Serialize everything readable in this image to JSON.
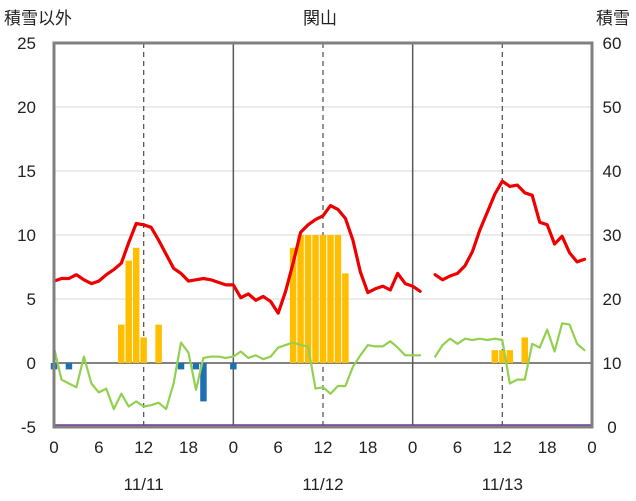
{
  "chart_data": {
    "type": "bar+line",
    "title": "関山",
    "left_axis_label": "積雪以外",
    "right_axis_label": "積雪",
    "left_ylim": [
      -5,
      25
    ],
    "left_ticks": [
      "25",
      "20",
      "15",
      "10",
      "5",
      "0",
      "-5"
    ],
    "right_ylim": [
      0,
      60
    ],
    "right_ticks": [
      "60",
      "50",
      "40",
      "30",
      "20",
      "10",
      "0"
    ],
    "x_range_hours": [
      0,
      72
    ],
    "x_tick_labels": [
      "0",
      "6",
      "12",
      "18",
      "0",
      "6",
      "12",
      "18",
      "0",
      "6",
      "12",
      "18",
      "0"
    ],
    "dates": [
      "11/11",
      "11/12",
      "11/13"
    ],
    "colors": {
      "temperature": "#ee0000",
      "precipitation": "#ffbf00",
      "snow_change": "#1f6fb4",
      "wind": "#92d050",
      "snow_depth": "#7030a0"
    },
    "series": [
      {
        "key": "temperature",
        "type": "line",
        "axis": "left",
        "segments": [
          [
            [
              0,
              6.4
            ],
            [
              1,
              6.6
            ],
            [
              2,
              6.6
            ],
            [
              3,
              6.9
            ],
            [
              4,
              6.5
            ],
            [
              5,
              6.2
            ],
            [
              6,
              6.4
            ],
            [
              7,
              6.9
            ],
            [
              8,
              7.3
            ],
            [
              9,
              7.8
            ],
            [
              10,
              9.4
            ],
            [
              11,
              10.9
            ],
            [
              12,
              10.8
            ],
            [
              13,
              10.6
            ],
            [
              14,
              9.6
            ],
            [
              15,
              8.5
            ],
            [
              16,
              7.4
            ],
            [
              17,
              7.0
            ],
            [
              18,
              6.4
            ],
            [
              19,
              6.5
            ],
            [
              20,
              6.6
            ],
            [
              21,
              6.5
            ],
            [
              22,
              6.3
            ],
            [
              23,
              6.1
            ],
            [
              24,
              6.1
            ],
            [
              25,
              5.1
            ],
            [
              26,
              5.4
            ],
            [
              27,
              4.9
            ],
            [
              28,
              5.2
            ],
            [
              29,
              4.8
            ],
            [
              30,
              3.9
            ],
            [
              31,
              5.6
            ],
            [
              32,
              7.8
            ],
            [
              33,
              10.2
            ],
            [
              34,
              10.8
            ],
            [
              35,
              11.2
            ],
            [
              36,
              11.5
            ],
            [
              37,
              12.3
            ],
            [
              38,
              12.0
            ],
            [
              39,
              11.3
            ],
            [
              40,
              9.6
            ],
            [
              41,
              7.1
            ],
            [
              42,
              5.5
            ],
            [
              43,
              5.8
            ],
            [
              44,
              6.0
            ],
            [
              45,
              5.7
            ],
            [
              46,
              7.0
            ],
            [
              47,
              6.2
            ],
            [
              48,
              6.0
            ],
            [
              49,
              5.6
            ]
          ],
          [
            [
              51,
              6.9
            ],
            [
              52,
              6.5
            ],
            [
              53,
              6.8
            ],
            [
              54,
              7.0
            ],
            [
              55,
              7.6
            ],
            [
              56,
              8.7
            ],
            [
              57,
              10.4
            ],
            [
              58,
              11.8
            ],
            [
              59,
              13.2
            ],
            [
              60,
              14.2
            ],
            [
              61,
              13.8
            ],
            [
              62,
              13.9
            ],
            [
              63,
              13.3
            ],
            [
              64,
              13.1
            ],
            [
              65,
              11.0
            ],
            [
              66,
              10.8
            ],
            [
              67,
              9.3
            ],
            [
              68,
              9.9
            ],
            [
              69,
              8.6
            ],
            [
              70,
              7.9
            ],
            [
              71,
              8.1
            ]
          ]
        ]
      },
      {
        "key": "wind",
        "type": "line",
        "axis": "left",
        "segments": [
          [
            [
              0,
              1.2
            ],
            [
              1,
              -1.3
            ],
            [
              2,
              -1.6
            ],
            [
              3,
              -1.9
            ],
            [
              4,
              0.5
            ],
            [
              5,
              -1.6
            ],
            [
              6,
              -2.3
            ],
            [
              7,
              -2.0
            ],
            [
              8,
              -3.6
            ],
            [
              9,
              -2.4
            ],
            [
              10,
              -3.4
            ],
            [
              11,
              -3.0
            ],
            [
              12,
              -3.4
            ],
            [
              13,
              -3.3
            ],
            [
              14,
              -3.1
            ],
            [
              15,
              -3.6
            ],
            [
              16,
              -1.6
            ],
            [
              17,
              1.6
            ],
            [
              18,
              0.8
            ],
            [
              19,
              -2.1
            ],
            [
              20,
              0.4
            ],
            [
              21,
              0.5
            ],
            [
              22,
              0.5
            ],
            [
              23,
              0.4
            ],
            [
              24,
              0.5
            ],
            [
              25,
              0.9
            ],
            [
              26,
              0.4
            ],
            [
              27,
              0.6
            ],
            [
              28,
              0.3
            ],
            [
              29,
              0.5
            ],
            [
              30,
              1.2
            ],
            [
              31,
              1.4
            ],
            [
              32,
              1.6
            ],
            [
              33,
              1.4
            ],
            [
              34,
              1.3
            ],
            [
              35,
              -2.0
            ],
            [
              36,
              -1.9
            ],
            [
              37,
              -2.4
            ],
            [
              38,
              -1.8
            ],
            [
              39,
              -1.8
            ],
            [
              40,
              -0.3
            ],
            [
              41,
              0.6
            ],
            [
              42,
              1.4
            ],
            [
              43,
              1.3
            ],
            [
              44,
              1.3
            ],
            [
              45,
              1.7
            ],
            [
              46,
              1.2
            ],
            [
              47,
              0.6
            ],
            [
              48,
              0.6
            ],
            [
              49,
              0.6
            ]
          ],
          [
            [
              51,
              0.5
            ],
            [
              52,
              1.4
            ],
            [
              53,
              1.9
            ],
            [
              54,
              1.5
            ],
            [
              55,
              1.9
            ],
            [
              56,
              1.8
            ],
            [
              57,
              1.9
            ],
            [
              58,
              1.8
            ],
            [
              59,
              1.9
            ],
            [
              60,
              1.8
            ],
            [
              61,
              -1.6
            ],
            [
              62,
              -1.3
            ],
            [
              63,
              -1.3
            ],
            [
              64,
              1.5
            ],
            [
              65,
              1.2
            ],
            [
              66,
              2.6
            ],
            [
              67,
              0.9
            ],
            [
              68,
              3.1
            ],
            [
              69,
              3.0
            ],
            [
              70,
              1.5
            ],
            [
              71,
              1.0
            ]
          ]
        ]
      },
      {
        "key": "snow_depth",
        "type": "line",
        "axis": "right",
        "segments": [
          [
            [
              0,
              0.2
            ],
            [
              72,
              0.2
            ]
          ]
        ]
      },
      {
        "key": "precipitation",
        "type": "bar",
        "axis": "left",
        "bars": [
          [
            9,
            3
          ],
          [
            10,
            8
          ],
          [
            11,
            9
          ],
          [
            12,
            2
          ],
          [
            14,
            3
          ],
          [
            32,
            9
          ],
          [
            33,
            10
          ],
          [
            34,
            10
          ],
          [
            35,
            10
          ],
          [
            36,
            10
          ],
          [
            37,
            10
          ],
          [
            38,
            10
          ],
          [
            39,
            7
          ],
          [
            59,
            1
          ],
          [
            60,
            1
          ],
          [
            61,
            1
          ],
          [
            63,
            2
          ]
        ]
      },
      {
        "key": "snow_change",
        "type": "bar",
        "axis": "left",
        "bars": [
          [
            0,
            -0.5
          ],
          [
            2,
            -0.5
          ],
          [
            17,
            -0.5
          ],
          [
            19,
            -0.5
          ],
          [
            20,
            -3
          ],
          [
            24,
            -0.5
          ]
        ]
      }
    ]
  }
}
